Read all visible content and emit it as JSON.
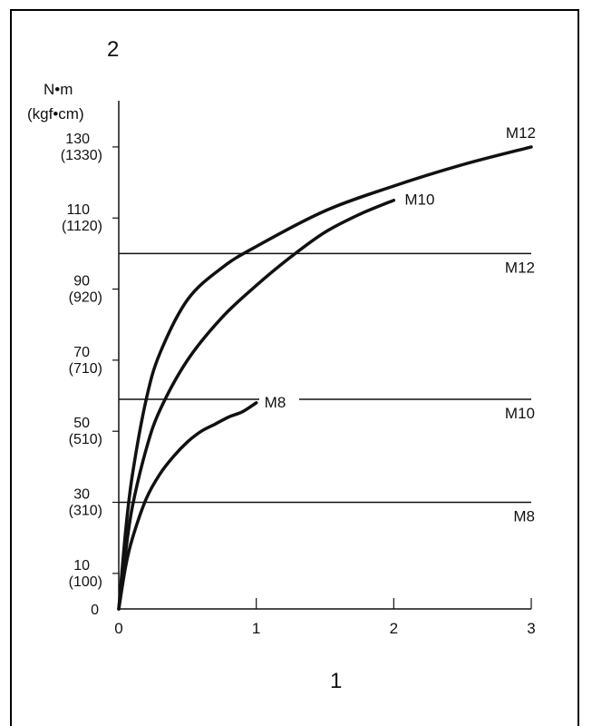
{
  "chart_data": {
    "type": "line",
    "corner_label": "2",
    "xlabel": "1",
    "ylabel_line1": "N•m",
    "ylabel_line2": "(kgf•cm)",
    "xlim": [
      0,
      3
    ],
    "ylim": [
      0,
      143
    ],
    "x_ticks": [
      "0",
      "1",
      "2",
      "3"
    ],
    "y_ticks": [
      {
        "value": 10,
        "label": "10",
        "sub": "(100)"
      },
      {
        "value": 30,
        "label": "30",
        "sub": "(310)"
      },
      {
        "value": 50,
        "label": "50",
        "sub": "(510)"
      },
      {
        "value": 70,
        "label": "70",
        "sub": "(710)"
      },
      {
        "value": 90,
        "label": "90",
        "sub": "(920)"
      },
      {
        "value": 110,
        "label": "110",
        "sub": "(1120)"
      },
      {
        "value": 130,
        "label": "130",
        "sub": "(1330)"
      }
    ],
    "y_zero_label": "0",
    "series": [
      {
        "name": "M12",
        "x": [
          0,
          0.05,
          0.1,
          0.2,
          0.3,
          0.5,
          0.75,
          1.0,
          1.5,
          2.0,
          2.5,
          3.0
        ],
        "y": [
          0,
          22,
          38,
          59,
          72,
          87,
          96,
          102,
          112,
          119,
          125,
          130
        ]
      },
      {
        "name": "M10",
        "x": [
          0,
          0.05,
          0.1,
          0.2,
          0.3,
          0.5,
          0.75,
          1.0,
          1.25,
          1.5,
          1.75,
          2.0
        ],
        "y": [
          0,
          16,
          29,
          45,
          56,
          70,
          82,
          91,
          99,
          106,
          111,
          115
        ]
      },
      {
        "name": "M8",
        "x": [
          0,
          0.05,
          0.1,
          0.2,
          0.3,
          0.4,
          0.5,
          0.6,
          0.7,
          0.8,
          0.9,
          1.0
        ],
        "y": [
          0,
          12,
          20,
          31,
          38,
          43,
          47,
          50,
          52,
          54,
          55.5,
          58
        ]
      }
    ],
    "reference_lines": [
      {
        "name": "M12",
        "y": 100
      },
      {
        "name": "M10",
        "y": 59
      },
      {
        "name": "M8",
        "y": 30
      }
    ]
  }
}
